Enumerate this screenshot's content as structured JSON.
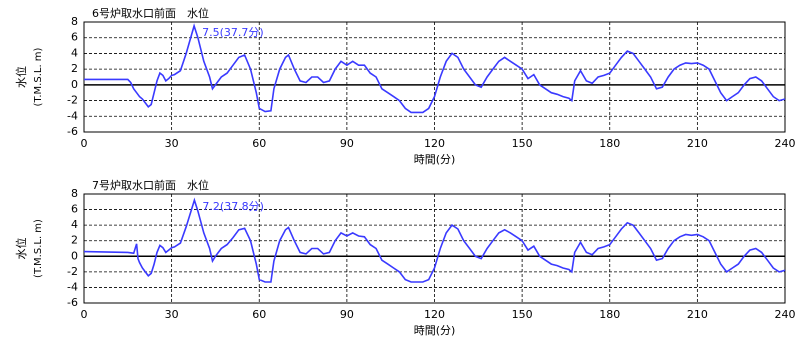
{
  "chart_data": [
    {
      "type": "line",
      "title": "6号炉取水口前面　水位",
      "xlabel": "時間(分)",
      "ylabel": "水位",
      "ylabel_unit": "(T.M.S.L. m)",
      "annotation": {
        "text": "7.5(37.7分)",
        "x": 37.7,
        "y": 7.5
      },
      "xlim": [
        0,
        240
      ],
      "xticks": [
        0,
        30,
        60,
        90,
        120,
        150,
        180,
        210,
        240
      ],
      "ylim": [
        -6,
        8
      ],
      "yticks": [
        -6,
        -4,
        -2,
        0,
        2,
        4,
        6,
        8
      ],
      "grid": true,
      "series": [
        {
          "name": "6号炉取水口前面　水位",
          "color": "#3a3aff",
          "x": [
            0,
            15,
            16,
            17,
            18,
            19,
            20,
            21,
            22,
            23,
            24,
            25,
            26,
            27,
            28,
            29,
            30,
            31,
            33,
            35,
            37.7,
            39,
            41,
            43,
            44,
            45,
            47,
            49,
            51,
            53,
            55,
            57,
            59,
            60,
            62,
            64,
            65,
            67,
            69,
            70,
            72,
            74,
            76,
            78,
            80,
            82,
            84,
            86,
            88,
            90,
            92,
            94,
            96,
            98,
            100,
            102,
            104,
            106,
            108,
            110,
            112,
            116,
            118,
            120,
            122,
            124,
            126,
            128,
            130,
            132,
            134,
            136,
            138,
            140,
            142,
            144,
            146,
            148,
            150,
            152,
            154,
            156,
            158,
            160,
            162,
            164,
            166,
            167,
            168,
            170,
            172,
            174,
            176,
            178,
            180,
            182,
            184,
            186,
            188,
            190,
            192,
            194,
            196,
            198,
            200,
            202,
            204,
            206,
            208,
            210,
            212,
            214,
            216,
            218,
            220,
            222,
            224,
            226,
            228,
            230,
            232,
            234,
            236,
            238,
            240
          ],
          "values": [
            0.7,
            0.7,
            0.3,
            -0.5,
            -1,
            -1.5,
            -1.8,
            -2.3,
            -2.8,
            -2.5,
            -1,
            0.5,
            1.5,
            1.2,
            0.5,
            0.8,
            1.2,
            1.3,
            1.8,
            4,
            7.5,
            6,
            3,
            1,
            -0.5,
            0,
            1,
            1.5,
            2.5,
            3.5,
            3.8,
            2,
            -1,
            -3,
            -3.4,
            -3.3,
            -0.5,
            2,
            3.5,
            3.8,
            2,
            0.5,
            0.3,
            1,
            1,
            0.3,
            0.5,
            2,
            3,
            2.5,
            3,
            2.5,
            2.5,
            1.5,
            1,
            -0.5,
            -1,
            -1.5,
            -2,
            -3,
            -3.5,
            -3.5,
            -3,
            -1.5,
            1,
            3,
            4,
            3.5,
            2,
            1,
            0,
            -0.3,
            1,
            2,
            3,
            3.5,
            3,
            2.5,
            2,
            0.8,
            1.3,
            0,
            -0.5,
            -1,
            -1.2,
            -1.5,
            -1.7,
            -2,
            0.5,
            1.8,
            0.5,
            0.2,
            1,
            1.2,
            1.5,
            2.5,
            3.5,
            4.3,
            4,
            3,
            2,
            1,
            -0.5,
            -0.3,
            1,
            2,
            2.5,
            2.8,
            2.7,
            2.8,
            2.5,
            2,
            0.5,
            -1,
            -2,
            -1.5,
            -1,
            0,
            0.8,
            1,
            0.5,
            -0.5,
            -1.5,
            -2,
            -1.8
          ]
        }
      ]
    },
    {
      "type": "line",
      "title": "7号炉取水口前面　水位",
      "xlabel": "時間(分)",
      "ylabel": "水位",
      "ylabel_unit": "(T.M.S.L. m)",
      "annotation": {
        "text": "7.2(37.8分)",
        "x": 37.8,
        "y": 7.2
      },
      "xlim": [
        0,
        240
      ],
      "xticks": [
        0,
        30,
        60,
        90,
        120,
        150,
        180,
        210,
        240
      ],
      "ylim": [
        -6,
        8
      ],
      "yticks": [
        -6,
        -4,
        -2,
        0,
        2,
        4,
        6,
        8
      ],
      "grid": true,
      "series": [
        {
          "name": "7号炉取水口前面　水位",
          "color": "#3a3aff",
          "x": [
            0,
            15,
            17,
            18,
            18.5,
            19,
            20,
            21,
            22,
            23,
            24,
            25,
            26,
            27,
            28,
            29,
            30,
            31,
            33,
            35,
            37.8,
            39,
            41,
            43,
            44,
            45,
            47,
            49,
            51,
            53,
            55,
            57,
            59,
            60,
            62,
            64,
            65,
            67,
            69,
            70,
            72,
            74,
            76,
            78,
            80,
            82,
            84,
            86,
            88,
            90,
            92,
            94,
            96,
            98,
            100,
            102,
            104,
            106,
            108,
            110,
            112,
            116,
            118,
            120,
            122,
            124,
            126,
            128,
            130,
            132,
            134,
            136,
            138,
            140,
            142,
            144,
            146,
            148,
            150,
            152,
            154,
            156,
            158,
            160,
            162,
            164,
            166,
            167,
            168,
            170,
            172,
            174,
            176,
            178,
            180,
            182,
            184,
            186,
            188,
            190,
            192,
            194,
            196,
            198,
            200,
            202,
            204,
            206,
            208,
            210,
            212,
            214,
            216,
            218,
            220,
            222,
            224,
            226,
            228,
            230,
            232,
            234,
            236,
            238,
            240
          ],
          "values": [
            0.6,
            0.5,
            0.4,
            1.6,
            -0.3,
            -0.8,
            -1.5,
            -2,
            -2.5,
            -2.2,
            -1,
            0.5,
            1.4,
            1.1,
            0.5,
            0.8,
            1.1,
            1.2,
            1.7,
            3.8,
            7.2,
            5.8,
            3,
            1,
            -0.6,
            0,
            1,
            1.5,
            2.4,
            3.4,
            3.6,
            2,
            -1,
            -3,
            -3.3,
            -3.3,
            -0.6,
            2,
            3.4,
            3.7,
            2,
            0.5,
            0.3,
            1,
            1,
            0.3,
            0.5,
            2,
            3,
            2.6,
            3,
            2.6,
            2.5,
            1.5,
            1,
            -0.5,
            -1,
            -1.5,
            -2,
            -3,
            -3.3,
            -3.3,
            -3,
            -1.5,
            1,
            3,
            4,
            3.5,
            2,
            1,
            0,
            -0.3,
            1,
            2,
            3,
            3.4,
            3,
            2.5,
            2,
            0.8,
            1.3,
            0,
            -0.5,
            -1,
            -1.2,
            -1.5,
            -1.7,
            -2,
            0.5,
            1.8,
            0.5,
            0.2,
            1,
            1.2,
            1.5,
            2.5,
            3.5,
            4.3,
            4,
            3,
            2,
            1,
            -0.5,
            -0.3,
            1,
            2,
            2.5,
            2.8,
            2.7,
            2.8,
            2.5,
            2,
            0.5,
            -1,
            -2,
            -1.5,
            -1,
            0,
            0.8,
            1,
            0.5,
            -0.5,
            -1.5,
            -2,
            -1.8
          ]
        }
      ]
    }
  ]
}
